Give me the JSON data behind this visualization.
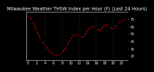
{
  "title": "Milwaukee Weather THSW Index per Hour (F) (Last 24 Hours)",
  "x": [
    0,
    1,
    2,
    3,
    4,
    5,
    6,
    7,
    8,
    9,
    10,
    11,
    12,
    13,
    14,
    15,
    16,
    17,
    18,
    19,
    20,
    21,
    22,
    23
  ],
  "y": [
    80,
    74,
    60,
    47,
    40,
    32,
    27,
    26,
    29,
    38,
    48,
    55,
    53,
    50,
    60,
    66,
    63,
    59,
    68,
    66,
    61,
    69,
    73,
    75
  ],
  "line_color": "#ff0000",
  "marker_color": "#000000",
  "plot_bg_color": "#000000",
  "fig_bg_color": "#000000",
  "grid_color": "#555555",
  "text_color": "#ffffff",
  "ylim": [
    20,
    85
  ],
  "ytick_values": [
    25,
    35,
    45,
    55,
    65,
    75
  ],
  "ytick_labels": [
    "25",
    "35",
    "45",
    "55",
    "65",
    "75"
  ],
  "xlim": [
    -0.5,
    23.5
  ],
  "xtick_values": [
    0,
    2,
    4,
    6,
    8,
    10,
    12,
    14,
    16,
    18,
    20,
    22
  ],
  "xtick_labels": [
    "0",
    "2",
    "4",
    "6",
    "8",
    "10",
    "12",
    "14",
    "16",
    "18",
    "20",
    "22"
  ],
  "title_fontsize": 4.8,
  "tick_fontsize": 3.5,
  "line_width": 0.8,
  "marker_size": 1.5,
  "grid_vlines": [
    0,
    4,
    8,
    12,
    16,
    20,
    24
  ]
}
